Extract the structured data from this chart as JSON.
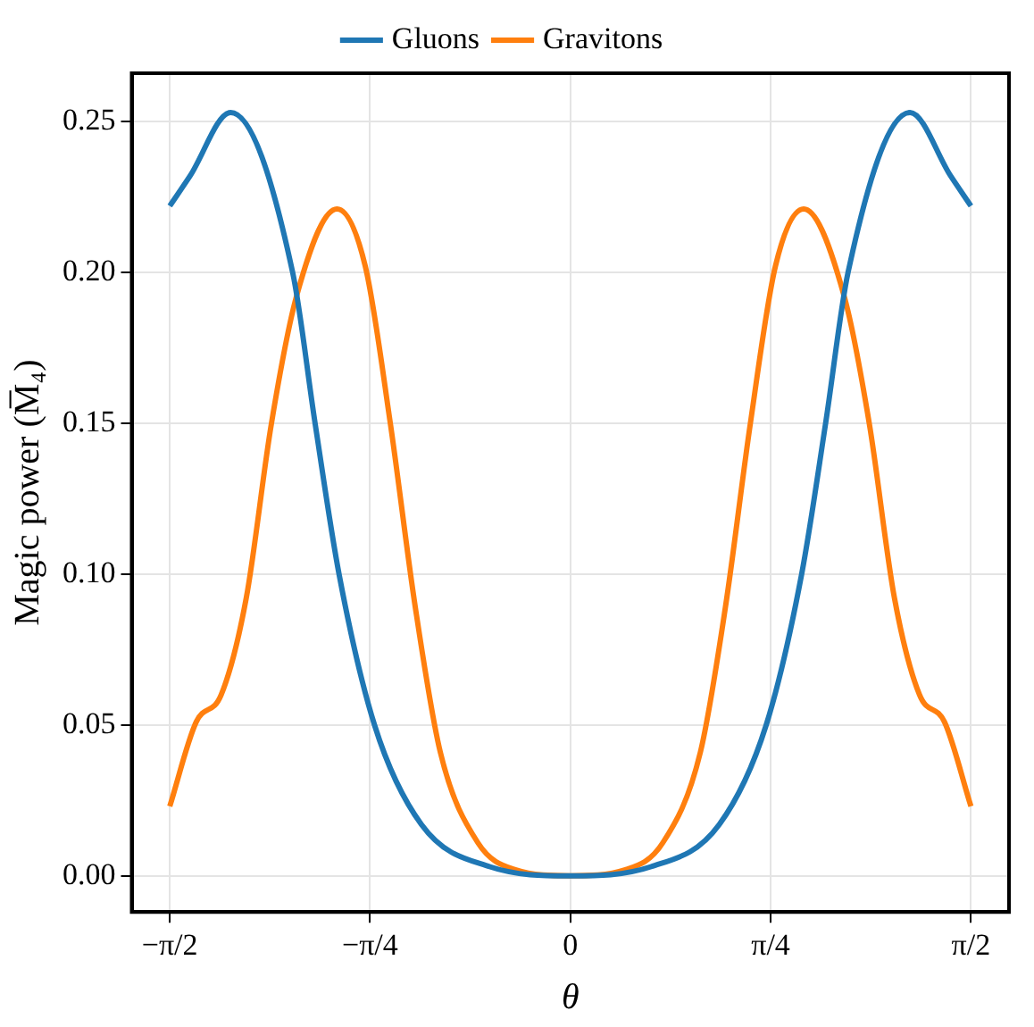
{
  "chart_data": {
    "type": "line",
    "xlabel": "θ",
    "ylabel": "Magic power (M̅₄)",
    "xlim": [
      -1.72,
      1.72
    ],
    "ylim": [
      -0.012,
      0.266
    ],
    "xticks": [
      {
        "value": -1.5708,
        "label": "−π/2"
      },
      {
        "value": -0.7854,
        "label": "−π/4"
      },
      {
        "value": 0,
        "label": "0"
      },
      {
        "value": 0.7854,
        "label": "π/4"
      },
      {
        "value": 1.5708,
        "label": "π/2"
      }
    ],
    "yticks": [
      {
        "value": 0,
        "label": "0.00"
      },
      {
        "value": 0.05,
        "label": "0.05"
      },
      {
        "value": 0.1,
        "label": "0.10"
      },
      {
        "value": 0.15,
        "label": "0.15"
      },
      {
        "value": 0.2,
        "label": "0.20"
      },
      {
        "value": 0.25,
        "label": "0.25"
      }
    ],
    "grid": true,
    "legend": "top",
    "marker": "none",
    "line_style": "solid",
    "series": [
      {
        "name": "Gluons",
        "color": "#1f77b4",
        "x": [
          -1.5708,
          -1.491,
          -1.332,
          -1.089,
          -1.001,
          -0.907,
          -0.768,
          -0.584,
          -0.316,
          0,
          0.316,
          0.584,
          0.768,
          0.907,
          1.001,
          1.089,
          1.332,
          1.491,
          1.5708
        ],
        "values": [
          0.222,
          0.232,
          0.253,
          0.2,
          0.15,
          0.1,
          0.05,
          0.017,
          0.003,
          0,
          0.003,
          0.017,
          0.05,
          0.1,
          0.15,
          0.2,
          0.253,
          0.232,
          0.222
        ]
      },
      {
        "name": "Gravitons",
        "color": "#ff7f0e",
        "x": [
          -1.5708,
          -1.467,
          -1.369,
          -1.271,
          -1.172,
          -1.074,
          -0.915,
          -0.804,
          -0.706,
          -0.608,
          -0.51,
          -0.363,
          -0.216,
          0,
          0.216,
          0.363,
          0.51,
          0.608,
          0.706,
          0.804,
          0.915,
          1.074,
          1.172,
          1.271,
          1.369,
          1.467,
          1.5708
        ],
        "values": [
          0.023,
          0.051,
          0.06,
          0.092,
          0.15,
          0.192,
          0.221,
          0.202,
          0.15,
          0.089,
          0.041,
          0.011,
          0.002,
          0,
          0.002,
          0.011,
          0.041,
          0.089,
          0.15,
          0.202,
          0.221,
          0.192,
          0.15,
          0.092,
          0.06,
          0.051,
          0.023
        ]
      }
    ]
  }
}
